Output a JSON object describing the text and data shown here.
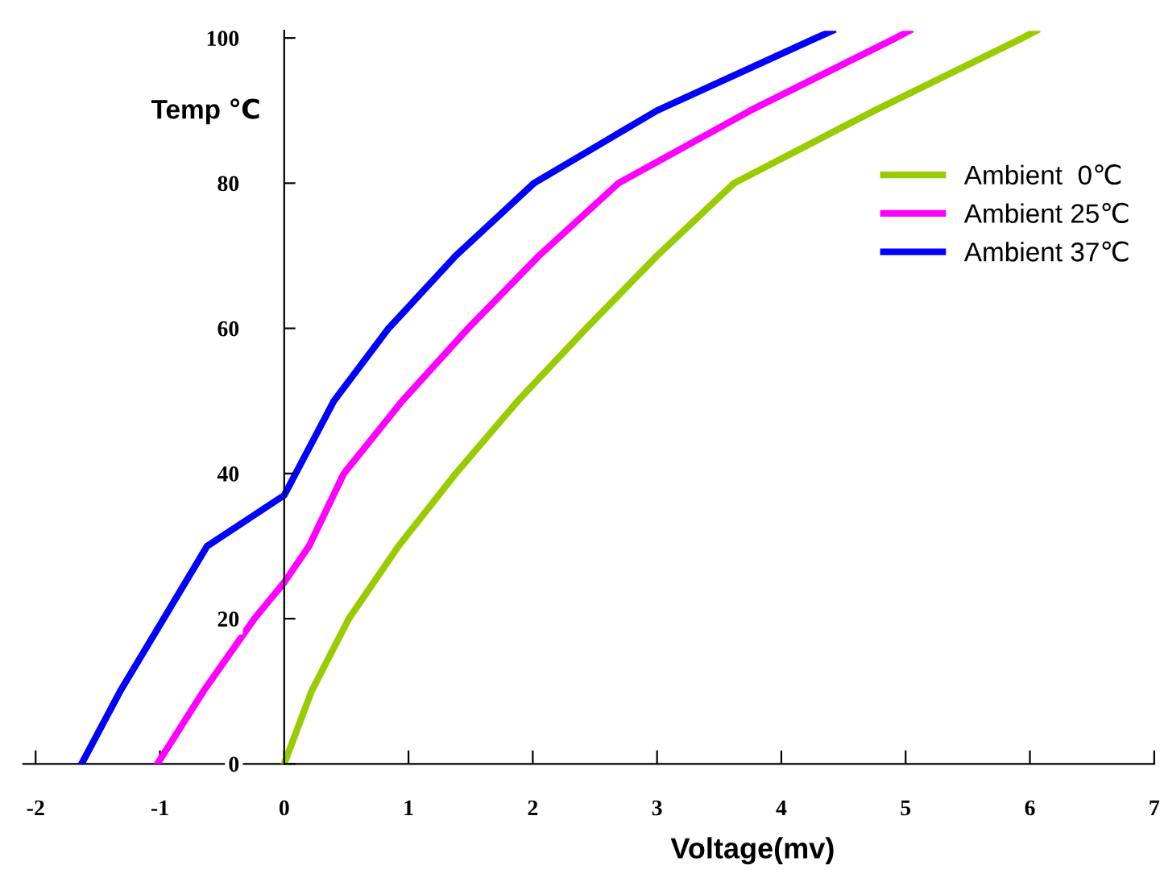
{
  "chart_data": {
    "type": "line",
    "xlabel": "Voltage(mv)",
    "ylabel": "Temp ℃",
    "xlim": [
      -2.1,
      7
    ],
    "ylim": [
      0,
      101
    ],
    "xticks": [
      -2,
      -1,
      0,
      1,
      2,
      3,
      4,
      5,
      6,
      7
    ],
    "yticks": [
      0,
      20,
      40,
      60,
      80,
      100
    ],
    "grid": false,
    "legend": "top right",
    "marker": "none",
    "line_style": "solid",
    "series": [
      {
        "name": "Ambient  0℃",
        "color": "#99cc00",
        "x": [
          0,
          0.22,
          0.52,
          0.92,
          1.38,
          1.88,
          2.43,
          3.0,
          3.62,
          4.75,
          5.94,
          6.05
        ],
        "values": [
          0,
          10,
          20,
          30,
          40,
          50,
          60,
          70,
          80,
          90,
          100,
          101
        ]
      },
      {
        "name": "Ambient 25℃",
        "color": "#ff00ff",
        "x": [
          -1.02,
          -0.65,
          -0.24,
          0,
          0.2,
          0.48,
          0.95,
          1.48,
          2.05,
          2.69,
          3.75,
          4.92,
          5.03
        ],
        "values": [
          0,
          10,
          20,
          25,
          30,
          40,
          50,
          60,
          70,
          80,
          90,
          100,
          101
        ]
      },
      {
        "name": "Ambient 37℃",
        "color": "#0000ff",
        "x": [
          -1.63,
          -1.32,
          -0.97,
          -0.62,
          0,
          0.4,
          0.84,
          1.38,
          2.01,
          3.0,
          4.28,
          4.41
        ],
        "values": [
          0,
          10,
          20,
          30,
          37,
          50,
          60,
          70,
          80,
          90,
          100,
          101
        ]
      }
    ]
  }
}
